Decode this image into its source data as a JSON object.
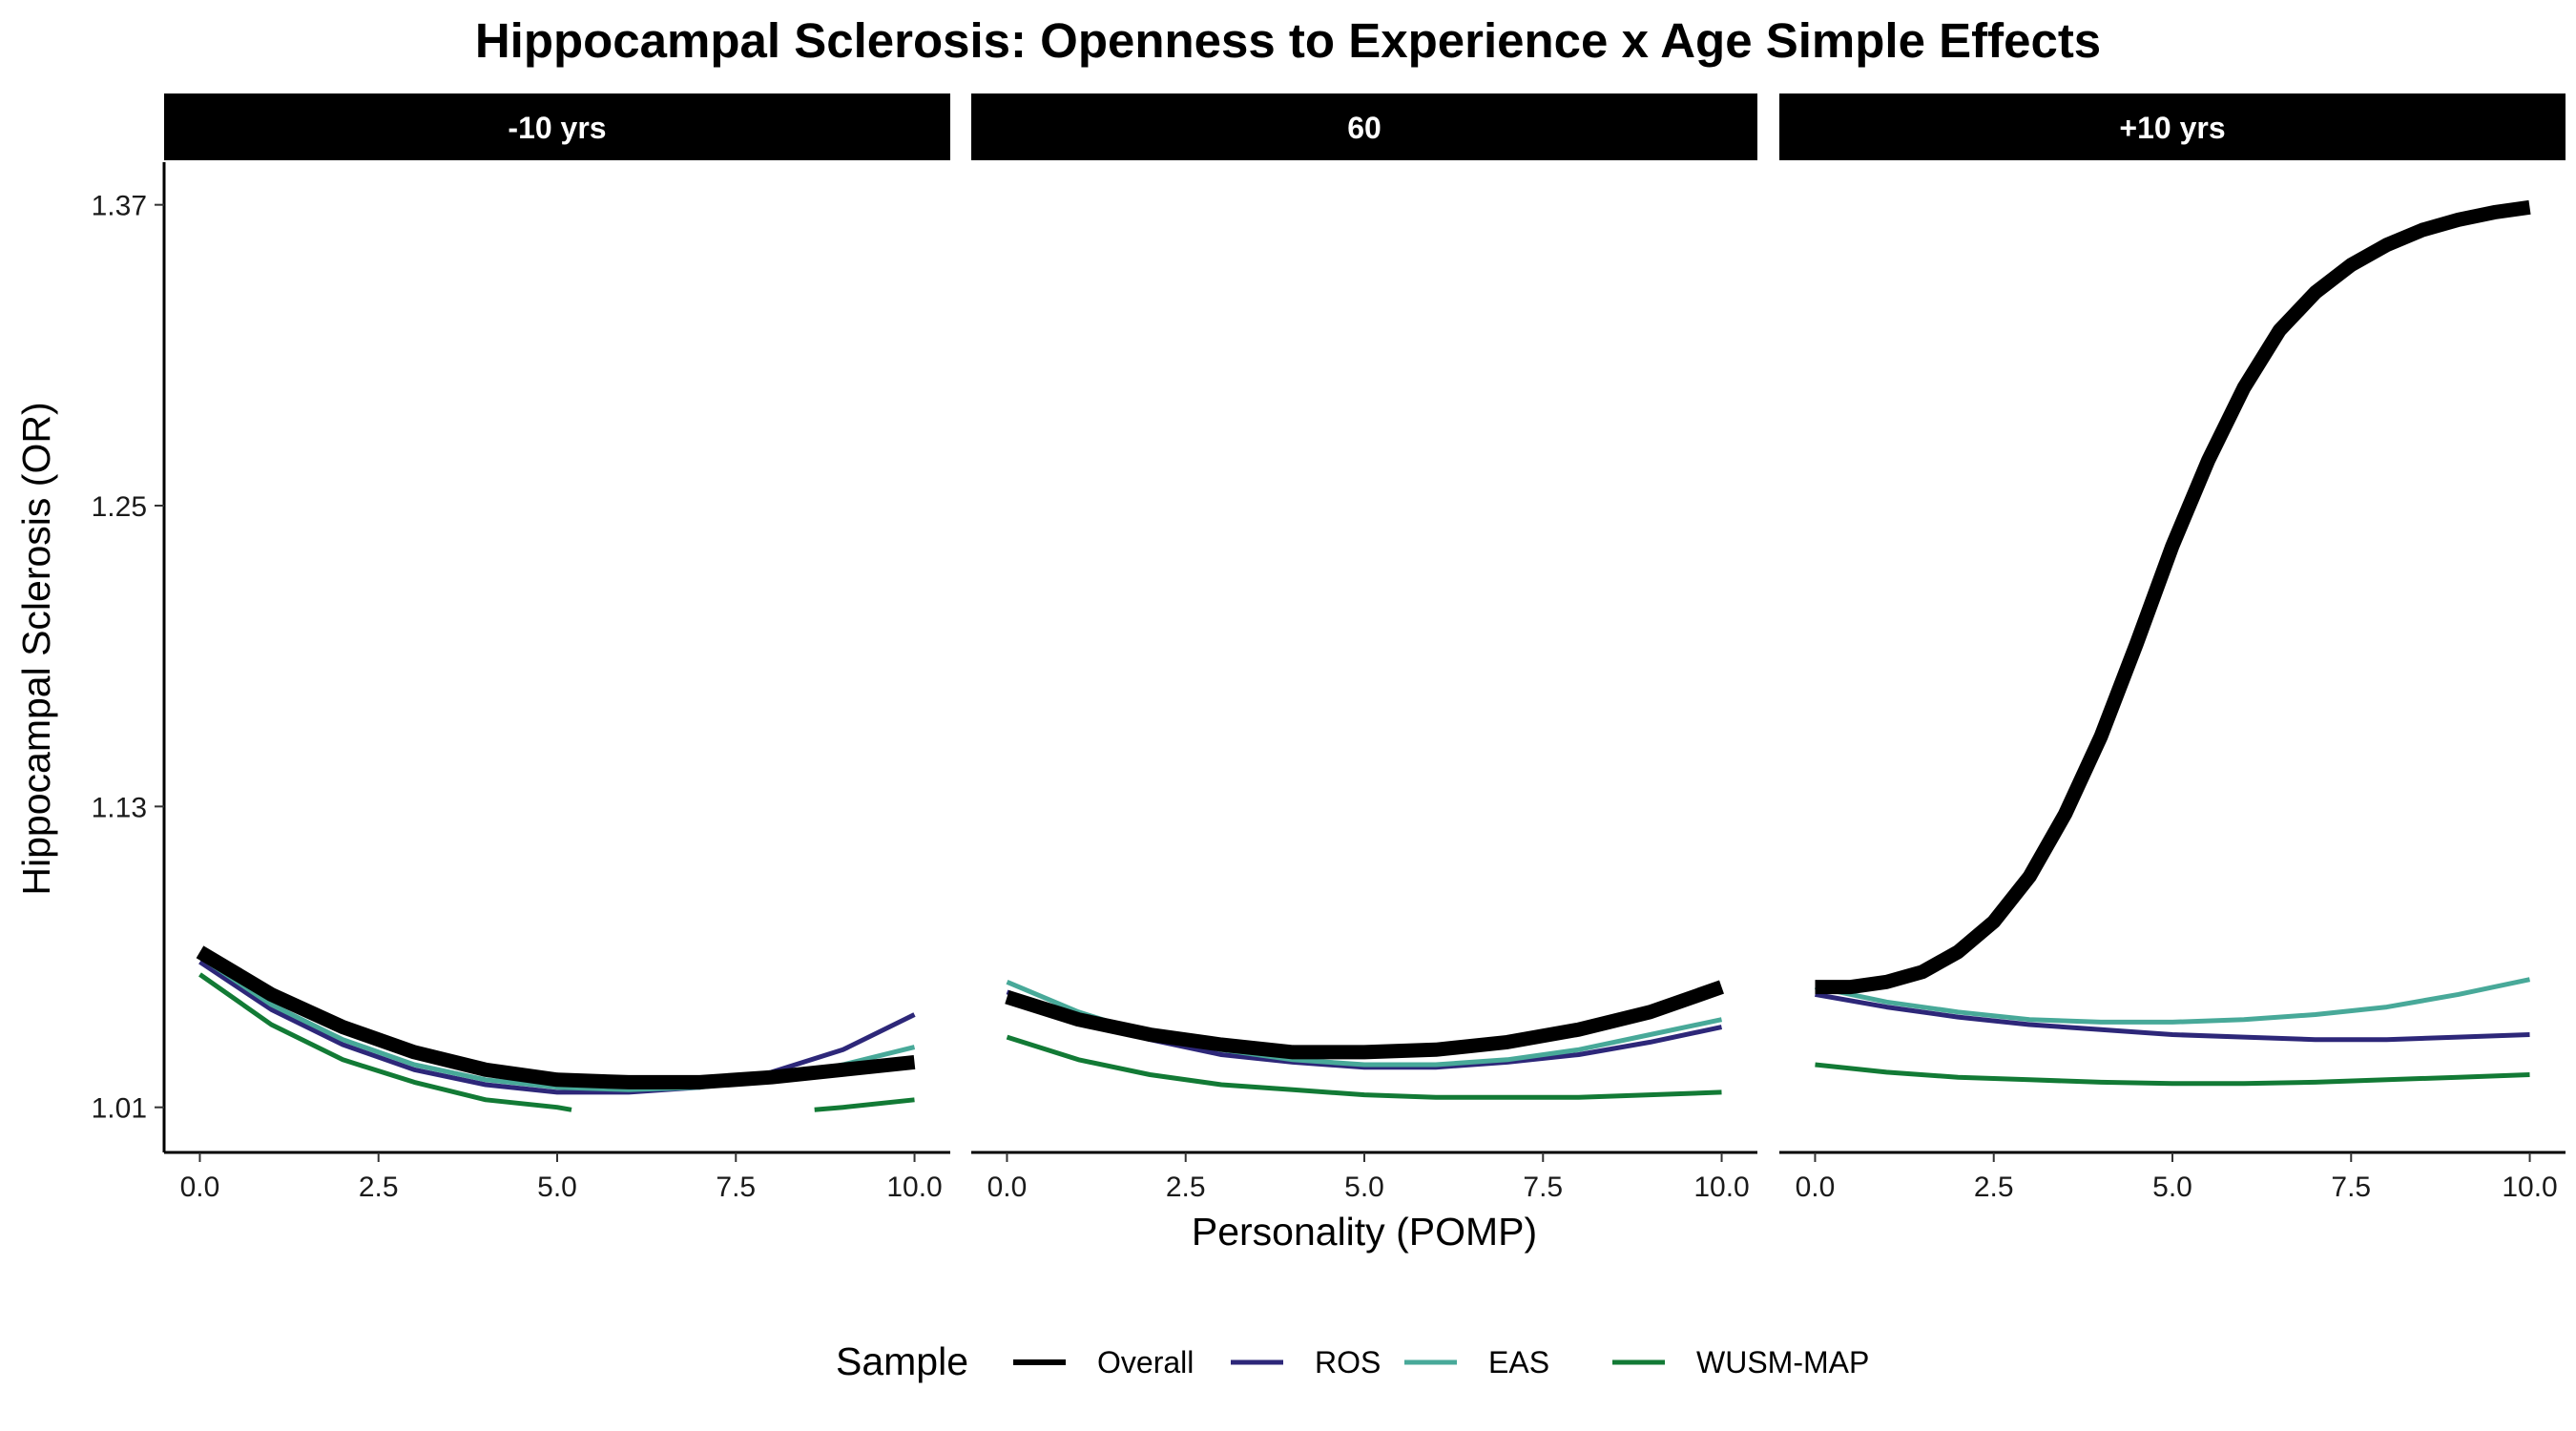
{
  "chart_data": {
    "type": "line",
    "title": "Hippocampal Sclerosis: Openness to Experience x Age Simple Effects",
    "xlabel": "Personality (POMP)",
    "ylabel": "Hippocampal Sclerosis (OR)",
    "xlim": [
      -0.5,
      10.5
    ],
    "ylim": [
      0.992,
      1.387
    ],
    "x_ticks": [
      0,
      2.5,
      5,
      7.5,
      10
    ],
    "x_tick_labels": [
      "0.0",
      "2.5",
      "5.0",
      "7.5",
      "10.0"
    ],
    "y_ticks": [
      1.01,
      1.13,
      1.25,
      1.37
    ],
    "y_tick_labels": [
      "1.01",
      "1.13",
      "1.25",
      "1.37"
    ],
    "grid": false,
    "legend": {
      "title": "Sample",
      "position": "bottom",
      "entries": [
        {
          "label": "Overall",
          "color": "#000000"
        },
        {
          "label": "ROS",
          "color": "#2d2779"
        },
        {
          "label": "EAS",
          "color": "#48a999"
        },
        {
          "label": "WUSM-MAP",
          "color": "#127a35"
        }
      ]
    },
    "panels": [
      {
        "label": "-10 yrs",
        "series": [
          {
            "name": "Overall",
            "color": "#000000",
            "thick": true,
            "x": [
              0,
              1,
              2,
              3,
              4,
              5,
              6,
              7,
              8,
              9,
              10
            ],
            "y": [
              1.072,
              1.055,
              1.042,
              1.032,
              1.025,
              1.021,
              1.02,
              1.02,
              1.022,
              1.025,
              1.028
            ]
          },
          {
            "name": "ROS",
            "color": "#2d2779",
            "thick": false,
            "x": [
              0,
              1,
              2,
              3,
              4,
              5,
              6,
              7,
              8,
              9,
              10
            ],
            "y": [
              1.068,
              1.049,
              1.035,
              1.025,
              1.019,
              1.016,
              1.016,
              1.018,
              1.024,
              1.033,
              1.047
            ]
          },
          {
            "name": "EAS",
            "color": "#48a999",
            "thick": false,
            "x": [
              0,
              1,
              2,
              3,
              4,
              5,
              6,
              7,
              8,
              9,
              10
            ],
            "y": [
              1.07,
              1.051,
              1.037,
              1.027,
              1.021,
              1.018,
              1.017,
              1.018,
              1.021,
              1.027,
              1.034
            ]
          },
          {
            "name": "WUSM-MAP",
            "color": "#127a35",
            "thick": false,
            "segments": [
              {
                "x": [
                  0,
                  1,
                  2,
                  3,
                  4,
                  5,
                  5.2
                ],
                "y": [
                  1.063,
                  1.043,
                  1.029,
                  1.02,
                  1.013,
                  1.01,
                  1.009
                ]
              },
              {
                "x": [
                  8.6,
                  9,
                  10
                ],
                "y": [
                  1.009,
                  1.01,
                  1.013
                ]
              }
            ]
          }
        ]
      },
      {
        "label": "60",
        "series": [
          {
            "name": "Overall",
            "color": "#000000",
            "thick": true,
            "x": [
              0,
              1,
              2,
              3,
              4,
              5,
              6,
              7,
              8,
              9,
              10
            ],
            "y": [
              1.054,
              1.045,
              1.039,
              1.035,
              1.032,
              1.032,
              1.033,
              1.036,
              1.041,
              1.048,
              1.058
            ]
          },
          {
            "name": "ROS",
            "color": "#2d2779",
            "thick": false,
            "x": [
              0,
              1,
              2,
              3,
              4,
              5,
              6,
              7,
              8,
              9,
              10
            ],
            "y": [
              1.056,
              1.045,
              1.037,
              1.031,
              1.028,
              1.026,
              1.026,
              1.028,
              1.031,
              1.036,
              1.042
            ]
          },
          {
            "name": "EAS",
            "color": "#48a999",
            "thick": false,
            "x": [
              0,
              1,
              2,
              3,
              4,
              5,
              6,
              7,
              8,
              9,
              10
            ],
            "y": [
              1.06,
              1.048,
              1.039,
              1.033,
              1.029,
              1.027,
              1.027,
              1.029,
              1.033,
              1.039,
              1.045
            ]
          },
          {
            "name": "WUSM-MAP",
            "color": "#127a35",
            "thick": false,
            "x": [
              0,
              1,
              2,
              3,
              4,
              5,
              6,
              7,
              8,
              9,
              10
            ],
            "y": [
              1.038,
              1.029,
              1.023,
              1.019,
              1.017,
              1.015,
              1.014,
              1.014,
              1.014,
              1.015,
              1.016
            ]
          }
        ]
      },
      {
        "label": "+10 yrs",
        "series": [
          {
            "name": "Overall",
            "color": "#000000",
            "thick": true,
            "x": [
              0,
              0.5,
              1,
              1.5,
              2,
              2.5,
              3,
              3.5,
              4,
              4.5,
              5,
              5.5,
              6,
              6.5,
              7,
              7.5,
              8,
              8.5,
              9,
              9.5,
              10
            ],
            "y": [
              1.058,
              1.058,
              1.06,
              1.064,
              1.072,
              1.084,
              1.102,
              1.127,
              1.158,
              1.195,
              1.234,
              1.268,
              1.297,
              1.32,
              1.335,
              1.346,
              1.354,
              1.36,
              1.364,
              1.367,
              1.369
            ]
          },
          {
            "name": "ROS",
            "color": "#2d2779",
            "thick": false,
            "x": [
              0,
              1,
              2,
              3,
              4,
              5,
              6,
              7,
              8,
              9,
              10
            ],
            "y": [
              1.055,
              1.05,
              1.046,
              1.043,
              1.041,
              1.039,
              1.038,
              1.037,
              1.037,
              1.038,
              1.039
            ]
          },
          {
            "name": "EAS",
            "color": "#48a999",
            "thick": false,
            "x": [
              0,
              1,
              2,
              3,
              4,
              5,
              6,
              7,
              8,
              9,
              10
            ],
            "y": [
              1.058,
              1.052,
              1.048,
              1.045,
              1.044,
              1.044,
              1.045,
              1.047,
              1.05,
              1.055,
              1.061
            ]
          },
          {
            "name": "WUSM-MAP",
            "color": "#127a35",
            "thick": false,
            "x": [
              0,
              1,
              2,
              3,
              4,
              5,
              6,
              7,
              8,
              9,
              10
            ],
            "y": [
              1.027,
              1.024,
              1.022,
              1.021,
              1.02,
              1.0195,
              1.0195,
              1.02,
              1.021,
              1.022,
              1.023
            ]
          }
        ]
      }
    ]
  }
}
